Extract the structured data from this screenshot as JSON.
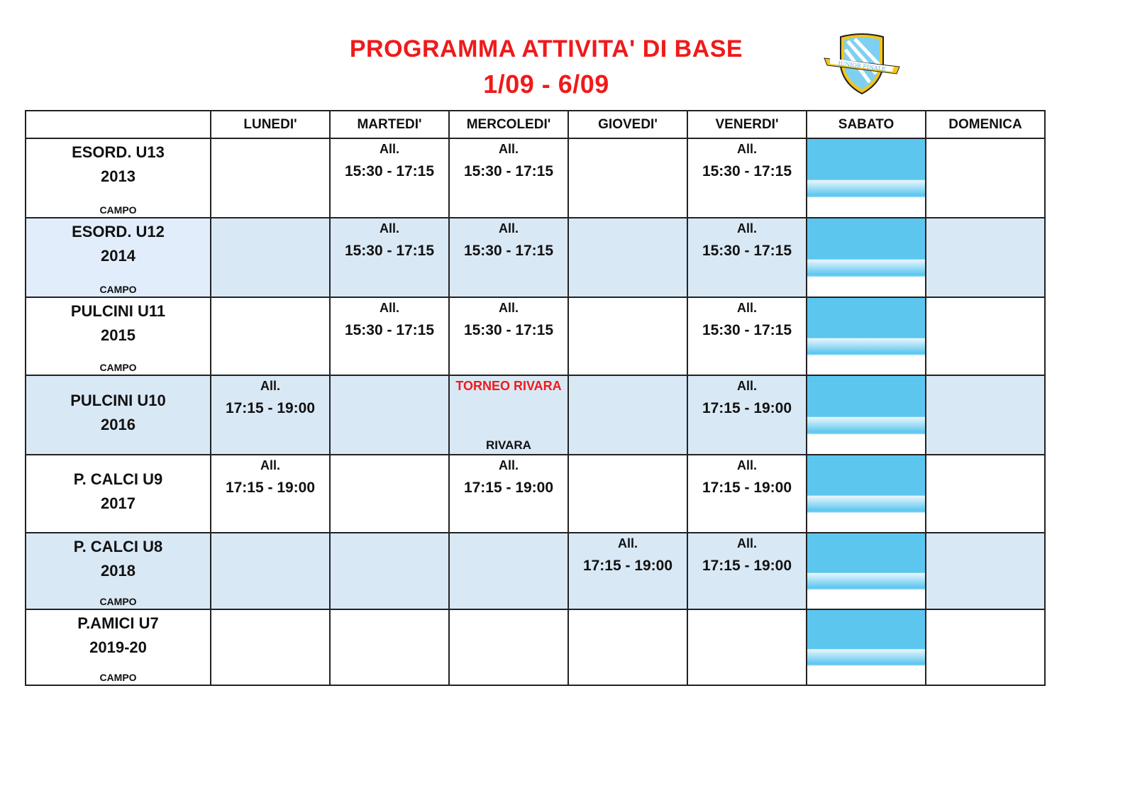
{
  "title": "PROGRAMMA ATTIVITA' DI BASE",
  "date_range": "1/09 - 6/09",
  "logo_text": "JUNIOR FINALE",
  "colors": {
    "title": "#f01a1a",
    "row_alt": "#d9e8f5",
    "saturday": "#5cc6ef"
  },
  "days": [
    "LUNEDI'",
    "MARTEDI'",
    "MERCOLEDI'",
    "GIOVEDI'",
    "VENERDI'",
    "SABATO",
    "DOMENICA"
  ],
  "rows": [
    {
      "name": "ESORD. U13",
      "year": "2013",
      "campo": "CAMPO",
      "cells": [
        {},
        {
          "top": "All.",
          "main": "15:30 - 17:15"
        },
        {
          "top": "All.",
          "main": "15:30 - 17:15"
        },
        {},
        {
          "top": "All.",
          "main": "15:30 - 17:15"
        },
        {},
        {}
      ]
    },
    {
      "name": "ESORD. U12",
      "year": "2014",
      "campo": "CAMPO",
      "cells": [
        {},
        {
          "top": "All.",
          "main": "15:30 - 17:15"
        },
        {
          "top": "All.",
          "main": "15:30 - 17:15"
        },
        {},
        {
          "top": "All.",
          "main": "15:30 - 17:15"
        },
        {},
        {}
      ]
    },
    {
      "name": "PULCINI U11",
      "year": "2015",
      "campo": "CAMPO",
      "cells": [
        {},
        {
          "top": "All.",
          "main": "15:30 - 17:15"
        },
        {
          "top": "All.",
          "main": "15:30 - 17:15"
        },
        {},
        {
          "top": "All.",
          "main": "15:30 - 17:15"
        },
        {},
        {}
      ]
    },
    {
      "name": "PULCINI U10",
      "year": "2016",
      "cells": [
        {
          "top": "All.",
          "main": "17:15 - 19:00"
        },
        {},
        {
          "top": "TORNEO RIVARA",
          "red": true,
          "bottom": "RIVARA"
        },
        {},
        {
          "top": "All.",
          "main": "17:15 - 19:00"
        },
        {},
        {}
      ]
    },
    {
      "name": "P. CALCI U9",
      "year": "2017",
      "cells": [
        {
          "top": "All.",
          "main": "17:15 - 19:00"
        },
        {},
        {
          "top": "All.",
          "main": "17:15 - 19:00"
        },
        {},
        {
          "top": "All.",
          "main": "17:15 - 19:00"
        },
        {},
        {}
      ]
    },
    {
      "name": "P. CALCI U8",
      "year": "2018",
      "campo": "CAMPO",
      "cells": [
        {},
        {},
        {},
        {
          "top": "All.",
          "main": "17:15 - 19:00"
        },
        {
          "top": "All.",
          "main": "17:15 - 19:00"
        },
        {},
        {}
      ]
    },
    {
      "name": "P.AMICI U7",
      "year": "2019-20",
      "campo": "CAMPO",
      "cells": [
        {},
        {},
        {},
        {},
        {},
        {},
        {}
      ]
    }
  ]
}
